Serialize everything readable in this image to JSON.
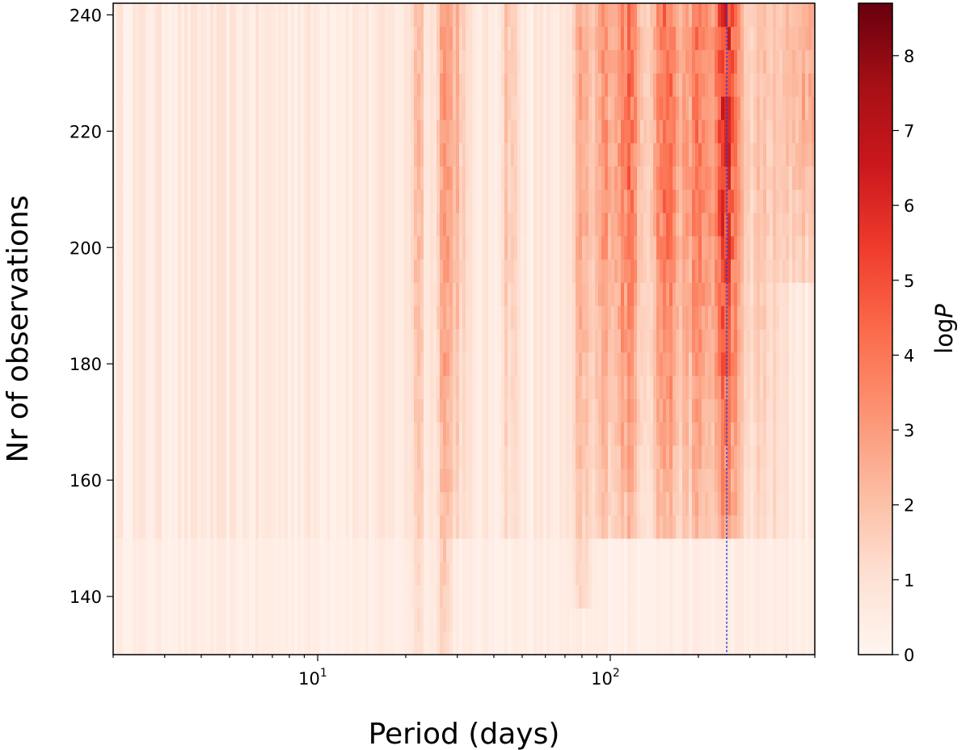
{
  "chart_data": {
    "type": "heatmap",
    "xlabel": "Period (days)",
    "ylabel": "Nr of observations",
    "xscale": "log",
    "xlim": [
      2,
      500
    ],
    "ylim": [
      130,
      242
    ],
    "x_ticks": [
      {
        "value": 10,
        "base": "10",
        "exp": "1"
      },
      {
        "value": 100,
        "base": "10",
        "exp": "2"
      }
    ],
    "y_ticks": [
      140,
      160,
      180,
      200,
      220,
      240
    ],
    "colorbar": {
      "label_main": "log",
      "label_italic": "P",
      "range": [
        0,
        8.7
      ],
      "ticks": [
        0,
        1,
        2,
        3,
        4,
        5,
        6,
        7,
        8
      ],
      "colormap": "Reds",
      "colors": [
        "#fff5f0",
        "#fee0d2",
        "#fcbba1",
        "#fc9272",
        "#fb6a4a",
        "#ef3b2c",
        "#cb181d",
        "#a50f15",
        "#67000d"
      ]
    },
    "reference_line": {
      "period": 250,
      "color": "#1f3fe0",
      "style": "dashed"
    },
    "peak_bands": [
      {
        "period": 27,
        "width": 0.02,
        "n_start": 130,
        "strength": 2.4
      },
      {
        "period": 22,
        "width": 0.015,
        "n_start": 130,
        "strength": 1.8
      },
      {
        "period": 30,
        "width": 0.02,
        "n_start": 150,
        "strength": 1.5
      },
      {
        "period": 45,
        "width": 0.02,
        "n_start": 150,
        "strength": 1.3
      },
      {
        "period": 80,
        "width": 0.02,
        "n_start": 140,
        "strength": 2.0
      },
      {
        "period": 95,
        "width": 0.025,
        "n_start": 150,
        "strength": 2.2
      },
      {
        "period": 115,
        "width": 0.035,
        "n_start": 150,
        "strength": 3.3
      },
      {
        "period": 155,
        "width": 0.035,
        "n_start": 150,
        "strength": 3.6
      },
      {
        "period": 200,
        "width": 0.035,
        "n_start": 150,
        "strength": 3.0
      },
      {
        "period": 250,
        "width": 0.03,
        "n_start": 150,
        "strength": 5.0
      },
      {
        "period": 330,
        "width": 0.05,
        "n_start": 150,
        "strength": 1.2
      },
      {
        "period": 460,
        "width": 0.05,
        "n_start": 195,
        "strength": 2.0
      }
    ]
  }
}
